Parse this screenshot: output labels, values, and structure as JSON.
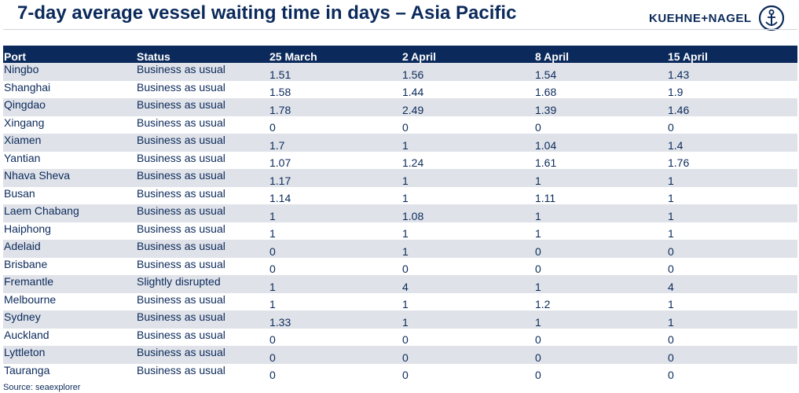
{
  "title": "7-day average vessel waiting time in days – Asia Pacific",
  "logo": {
    "text": "KUEHNE+NAGEL",
    "icon": "anchor-icon"
  },
  "source": "Source: seaexplorer",
  "colors": {
    "header_bg": "#0b2a5b",
    "row_alt": "#dfe2e8",
    "text": "#0b2a5b"
  },
  "chart_data": {
    "type": "table",
    "columns": [
      "Port",
      "Status",
      "25 March",
      "2 April",
      "8 April",
      "15 April"
    ],
    "rows": [
      [
        "Ningbo",
        "Business as usual",
        "1.51",
        "1.56",
        "1.54",
        "1.43"
      ],
      [
        "Shanghai",
        "Business as usual",
        "1.58",
        "1.44",
        "1.68",
        "1.9"
      ],
      [
        "Qingdao",
        "Business as usual",
        "1.78",
        "2.49",
        "1.39",
        "1.46"
      ],
      [
        "Xingang",
        "Business as usual",
        "0",
        "0",
        "0",
        "0"
      ],
      [
        "Xiamen",
        "Business as usual",
        "1.7",
        "1",
        "1.04",
        "1.4"
      ],
      [
        "Yantian",
        "Business as usual",
        "1.07",
        "1.24",
        "1.61",
        "1.76"
      ],
      [
        "Nhava Sheva",
        "Business as usual",
        "1.17",
        "1",
        "1",
        "1"
      ],
      [
        "Busan",
        "Business as usual",
        "1.14",
        "1",
        "1.11",
        "1"
      ],
      [
        "Laem Chabang",
        "Business as usual",
        "1",
        "1.08",
        "1",
        "1"
      ],
      [
        "Haiphong",
        "Business as usual",
        "1",
        "1",
        "1",
        "1"
      ],
      [
        "Adelaid",
        "Business as usual",
        "0",
        "1",
        "0",
        "0"
      ],
      [
        "Brisbane",
        "Business as usual",
        "0",
        "0",
        "0",
        "0"
      ],
      [
        "Fremantle",
        "Slightly disrupted",
        "1",
        "4",
        "1",
        "4"
      ],
      [
        "Melbourne",
        "Business as usual",
        "1",
        "1",
        "1.2",
        "1"
      ],
      [
        "Sydney",
        "Business as usual",
        "1.33",
        "1",
        "1",
        "1"
      ],
      [
        "Auckland",
        "Business as usual",
        "0",
        "0",
        "0",
        "0"
      ],
      [
        "Lyttleton",
        "Business as usual",
        "0",
        "0",
        "0",
        "0"
      ],
      [
        "Tauranga",
        "Business as usual",
        "0",
        "0",
        "0",
        "0"
      ]
    ]
  }
}
